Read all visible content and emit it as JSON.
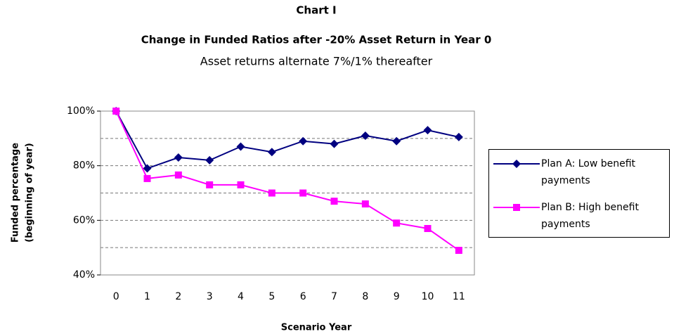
{
  "chart_data": {
    "type": "line",
    "title": "Chart I",
    "subtitle_bold": "Change in Funded Ratios after -20% Asset Return in Year 0",
    "subtitle": "Asset returns alternate 7%/1% thereafter",
    "ylabel": [
      "Funded percentage",
      "(beginning of year)"
    ],
    "xlabel": "Scenario Year",
    "categories": [
      "0",
      "1",
      "2",
      "3",
      "4",
      "5",
      "6",
      "7",
      "8",
      "9",
      "10",
      "11"
    ],
    "series": [
      {
        "name": "Plan A: Low benefit payments",
        "color": "#000080",
        "marker": "diamond",
        "values": [
          100,
          79,
          83,
          82,
          87,
          85,
          89,
          88,
          91,
          89,
          93,
          90.5
        ]
      },
      {
        "name": "Plan B: High benefit payments",
        "color": "#ff00ff",
        "marker": "square",
        "values": [
          100,
          75.3,
          76.6,
          73,
          73,
          70,
          70,
          67,
          66,
          59,
          57,
          49
        ]
      }
    ],
    "ylim": [
      40,
      100
    ],
    "yticks": [
      {
        "value": 40,
        "label": "40%"
      },
      {
        "value": 60,
        "label": "60%"
      },
      {
        "value": 80,
        "label": "80%"
      },
      {
        "value": 100,
        "label": "100%"
      }
    ],
    "grid_lines": [
      50,
      60,
      70,
      80,
      90
    ],
    "grid": true,
    "legend": "right"
  }
}
